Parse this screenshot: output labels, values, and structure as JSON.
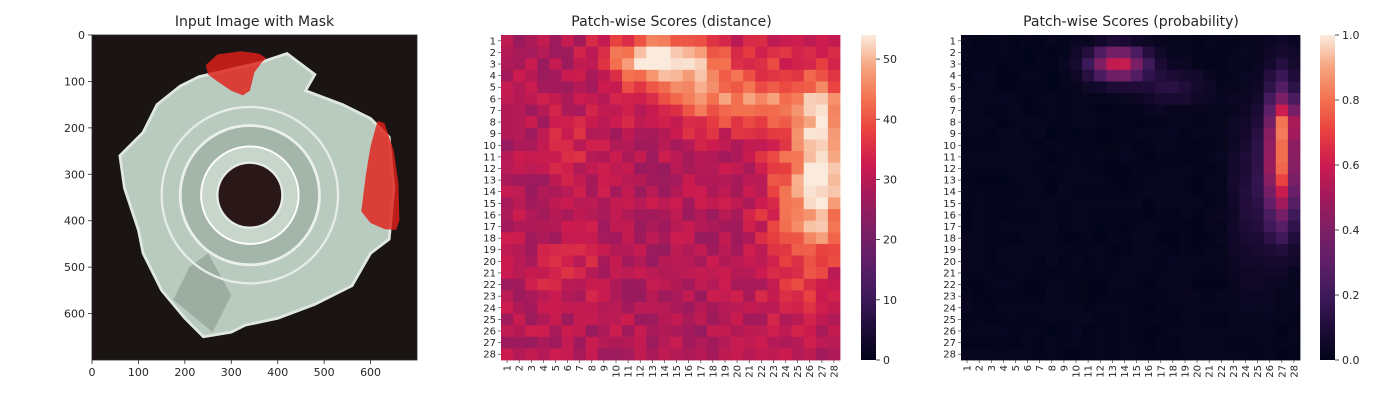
{
  "colors": {
    "mask": "#e0201a",
    "tool_face": "#c6d6cc",
    "background": "#1a1414",
    "hole": "#2a1818",
    "colormap": "rocket"
  },
  "chart_data": [
    {
      "type": "image",
      "title": "Input Image with Mask",
      "xlim": [
        0,
        700
      ],
      "ylim": [
        700,
        0
      ],
      "x_ticks": [
        0,
        100,
        200,
        300,
        400,
        500,
        600
      ],
      "y_ticks": [
        0,
        100,
        200,
        300,
        400,
        500,
        600
      ],
      "mask_regions": [
        {
          "name": "upper",
          "points": [
            [
              245,
              65
            ],
            [
              270,
              42
            ],
            [
              320,
              35
            ],
            [
              360,
              40
            ],
            [
              375,
              50
            ],
            [
              365,
              60
            ],
            [
              350,
              80
            ],
            [
              340,
              120
            ],
            [
              325,
              130
            ],
            [
              300,
              120
            ],
            [
              270,
              100
            ],
            [
              250,
              85
            ]
          ]
        },
        {
          "name": "right",
          "points": [
            [
              615,
              185
            ],
            [
              630,
              190
            ],
            [
              650,
              250
            ],
            [
              660,
              320
            ],
            [
              662,
              400
            ],
            [
              655,
              420
            ],
            [
              630,
              418
            ],
            [
              600,
              405
            ],
            [
              580,
              380
            ],
            [
              590,
              300
            ],
            [
              600,
              240
            ]
          ]
        }
      ]
    },
    {
      "type": "heatmap",
      "title": "Patch-wise Scores (distance)",
      "rows": 28,
      "cols": 28,
      "x_ticks": [
        "1",
        "2",
        "3",
        "4",
        "5",
        "6",
        "7",
        "8",
        "9",
        "10",
        "11",
        "12",
        "13",
        "14",
        "15",
        "16",
        "17",
        "18",
        "19",
        "20",
        "21",
        "22",
        "23",
        "24",
        "25",
        "26",
        "27",
        "28"
      ],
      "y_ticks": [
        "1",
        "2",
        "3",
        "4",
        "5",
        "6",
        "7",
        "8",
        "9",
        "10",
        "11",
        "12",
        "13",
        "14",
        "15",
        "16",
        "17",
        "18",
        "19",
        "20",
        "21",
        "22",
        "23",
        "24",
        "25",
        "26",
        "27",
        "28"
      ],
      "vmin": 0,
      "vmax": 54,
      "colorbar_ticks": [
        "0",
        "10",
        "20",
        "30",
        "40",
        "50"
      ],
      "colorbar_values": [
        0,
        10,
        20,
        30,
        40,
        50
      ],
      "base_value": 29,
      "hotspots": [
        {
          "x": 13.5,
          "y": 2.5,
          "sx": 2.8,
          "sy": 1.4,
          "amp": 24
        },
        {
          "x": 18.0,
          "y": 5.0,
          "sx": 4.0,
          "sy": 2.5,
          "amp": 13
        },
        {
          "x": 27.0,
          "y": 12.0,
          "sx": 1.4,
          "sy": 5.0,
          "amp": 24
        },
        {
          "x": 24.5,
          "y": 14.5,
          "sx": 2.0,
          "sy": 7.0,
          "amp": 10
        },
        {
          "x": 24.0,
          "y": 6.5,
          "sx": 6.0,
          "sy": 1.2,
          "amp": 8
        },
        {
          "x": 6.0,
          "y": 21.0,
          "sx": 2.5,
          "sy": 2.0,
          "amp": 4
        },
        {
          "x": 6.5,
          "y": 10.0,
          "sx": 2.0,
          "sy": 2.5,
          "amp": 4
        }
      ]
    },
    {
      "type": "heatmap",
      "title": "Patch-wise Scores (probability)",
      "rows": 28,
      "cols": 28,
      "x_ticks": [
        "1",
        "2",
        "3",
        "4",
        "5",
        "6",
        "7",
        "8",
        "9",
        "10",
        "11",
        "12",
        "13",
        "14",
        "15",
        "16",
        "17",
        "18",
        "19",
        "20",
        "21",
        "22",
        "23",
        "24",
        "25",
        "26",
        "27",
        "28"
      ],
      "y_ticks": [
        "1",
        "2",
        "3",
        "4",
        "5",
        "6",
        "7",
        "8",
        "9",
        "10",
        "11",
        "12",
        "13",
        "14",
        "15",
        "16",
        "17",
        "18",
        "19",
        "20",
        "21",
        "22",
        "23",
        "24",
        "25",
        "26",
        "27",
        "28"
      ],
      "vmin": 0,
      "vmax": 1,
      "colorbar_ticks": [
        "0.0",
        "0.2",
        "0.4",
        "0.6",
        "0.8",
        "1.0"
      ],
      "colorbar_values": [
        0,
        0.2,
        0.4,
        0.6,
        0.8,
        1.0
      ],
      "base_value": 0.01,
      "hotspots": [
        {
          "x": 13.5,
          "y": 3.0,
          "sx": 1.6,
          "sy": 1.0,
          "amp": 0.6
        },
        {
          "x": 18.0,
          "y": 5.0,
          "sx": 1.8,
          "sy": 1.0,
          "amp": 0.12
        },
        {
          "x": 27.0,
          "y": 11.0,
          "sx": 0.9,
          "sy": 4.0,
          "amp": 0.78
        },
        {
          "x": 24.5,
          "y": 14.0,
          "sx": 1.2,
          "sy": 5.0,
          "amp": 0.1
        },
        {
          "x": 27.5,
          "y": 8.0,
          "sx": 0.7,
          "sy": 1.0,
          "amp": 0.25
        }
      ]
    }
  ]
}
